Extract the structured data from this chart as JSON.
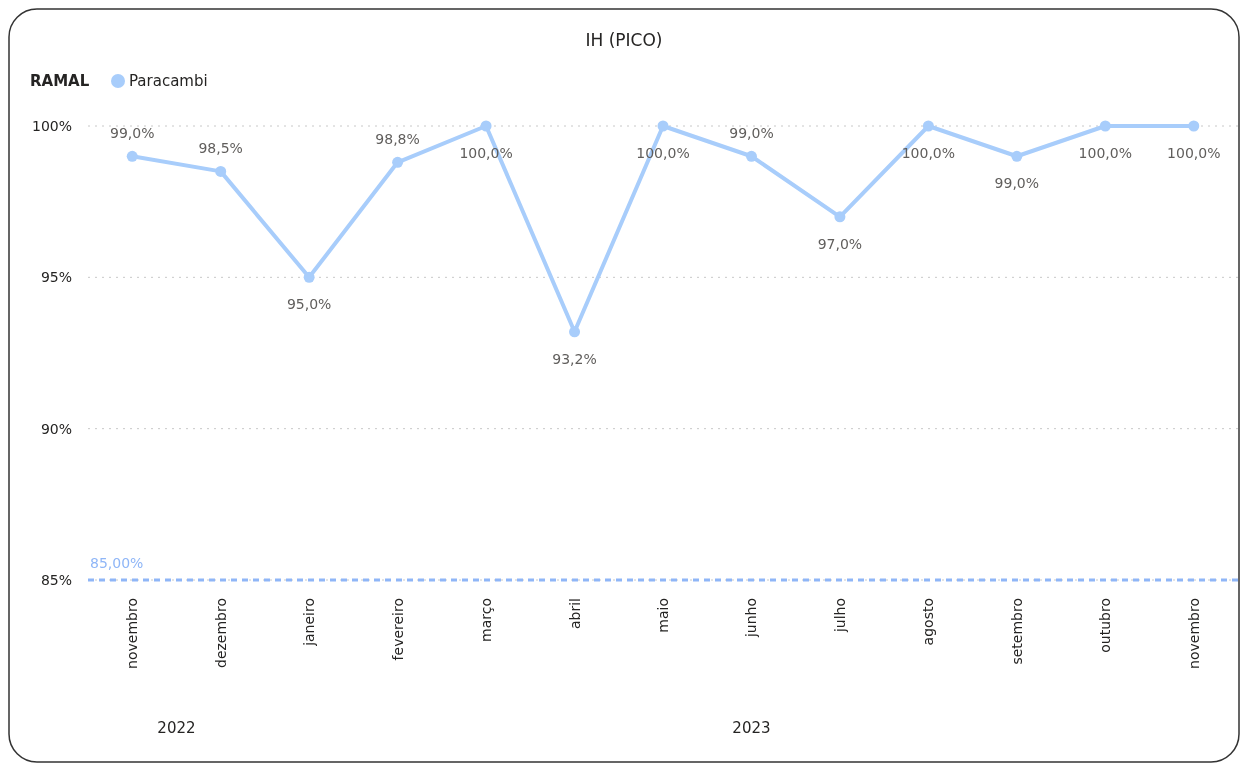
{
  "chart_data": {
    "type": "line",
    "title": "IH (PICO)",
    "legend_title": "RAMAL",
    "legend": "top left",
    "categories": [
      "novembro",
      "dezembro",
      "janeiro",
      "fevereiro",
      "março",
      "abril",
      "maio",
      "junho",
      "julho",
      "agosto",
      "setembro",
      "outubro",
      "novembro"
    ],
    "series": [
      {
        "name": "Paracambi",
        "color": "#a8cdfb",
        "values": [
          99.0,
          98.5,
          95.0,
          98.8,
          100,
          93.2,
          100,
          99.0,
          97.0,
          100,
          99.0,
          100,
          100
        ],
        "value_labels": [
          "99,0%",
          "98,5%",
          "95,0%",
          "98,8%",
          "100,0%",
          "93,2%",
          "100,0%",
          "99,0%",
          "97,0%",
          "100,0%",
          "99,0%",
          "100,0%",
          "100,0%"
        ]
      }
    ],
    "ylim": [
      85,
      100
    ],
    "yticks": [
      {
        "value": 85,
        "label": "85%"
      },
      {
        "value": 90,
        "label": "90%"
      },
      {
        "value": 95,
        "label": "95%"
      },
      {
        "value": 100,
        "label": "100%"
      }
    ],
    "grid": "y",
    "marker": "circle",
    "line_style": "solid",
    "ref_lines": [
      {
        "axis": "y",
        "value": 85,
        "label": "85,00%",
        "color": "#8fb6f7",
        "line_style": "dashed"
      }
    ],
    "annotations": [
      "2022",
      "2023"
    ]
  }
}
